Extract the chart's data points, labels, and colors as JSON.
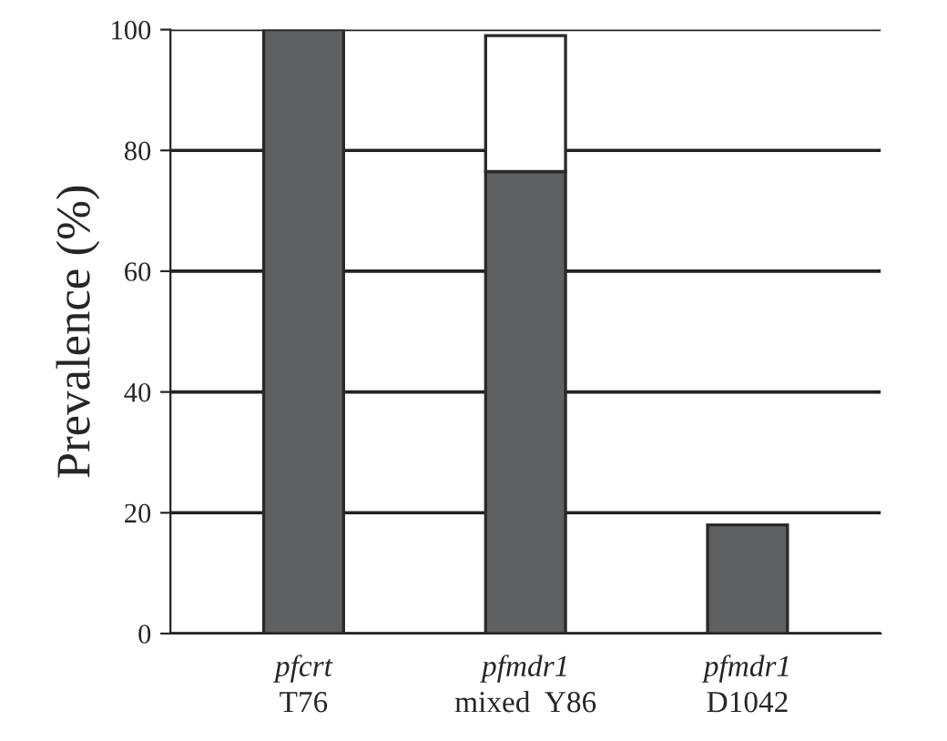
{
  "chart_data": {
    "type": "bar",
    "stacked": true,
    "ylabel": "Prevalence (%)",
    "categories": [
      "pfcrt\nT76",
      "pfmdr1\nmixed  Y86",
      "pfmdr1\nD1042"
    ],
    "series": [
      {
        "color": "#5f6062",
        "values": [
          100,
          76.5,
          18
        ]
      },
      {
        "color": "#ffffff",
        "values": [
          null,
          22.5,
          null
        ]
      }
    ],
    "ylim": [
      0,
      100
    ],
    "yticks": [
      0,
      20,
      40,
      60,
      80,
      100
    ],
    "grid": "y",
    "legend": false
  }
}
